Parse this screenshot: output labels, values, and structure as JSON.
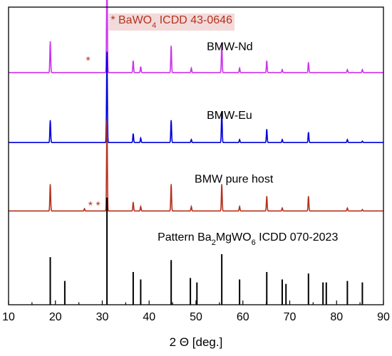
{
  "chart_data": {
    "type": "line",
    "xlabel": "2 Θ [deg.]",
    "xlim": [
      10,
      90
    ],
    "x_ticks": [
      "10",
      "20",
      "30",
      "40",
      "50",
      "60",
      "70",
      "80",
      "90"
    ],
    "y_ticks_shown": false,
    "grid": false,
    "legend": "none",
    "series": [
      {
        "name": "BMW-Nd",
        "color": "#cc33ee",
        "baseline": 0.78,
        "peaks": [
          [
            18.9,
            0.105
          ],
          [
            31.0,
            0.34
          ],
          [
            36.6,
            0.04
          ],
          [
            38.2,
            0.02
          ],
          [
            44.7,
            0.09
          ],
          [
            49.0,
            0.015
          ],
          [
            55.5,
            0.1
          ],
          [
            59.3,
            0.015
          ],
          [
            65.1,
            0.04
          ],
          [
            68.4,
            0.01
          ],
          [
            74.0,
            0.035
          ],
          [
            82.3,
            0.01
          ],
          [
            85.5,
            0.01
          ]
        ]
      },
      {
        "name": "BMW-Eu",
        "color": "#0000dd",
        "baseline": 0.545,
        "peaks": [
          [
            18.9,
            0.075
          ],
          [
            31.0,
            0.305
          ],
          [
            36.6,
            0.03
          ],
          [
            38.2,
            0.015
          ],
          [
            44.7,
            0.075
          ],
          [
            49.0,
            0.01
          ],
          [
            55.5,
            0.105
          ],
          [
            59.3,
            0.01
          ],
          [
            65.1,
            0.045
          ],
          [
            68.4,
            0.01
          ],
          [
            74.0,
            0.035
          ],
          [
            82.3,
            0.01
          ],
          [
            85.5,
            0.005
          ]
        ]
      },
      {
        "name": "BMW pure host",
        "color": "#b5321e",
        "baseline": 0.315,
        "peaks": [
          [
            18.9,
            0.09
          ],
          [
            26.2,
            0.008
          ],
          [
            31.0,
            0.305
          ],
          [
            36.6,
            0.03
          ],
          [
            38.2,
            0.015
          ],
          [
            44.7,
            0.09
          ],
          [
            49.0,
            0.015
          ],
          [
            55.5,
            0.09
          ],
          [
            59.3,
            0.015
          ],
          [
            65.1,
            0.05
          ],
          [
            68.4,
            0.01
          ],
          [
            74.0,
            0.05
          ],
          [
            82.3,
            0.01
          ],
          [
            85.5,
            0.005
          ]
        ]
      }
    ],
    "reference_pattern": {
      "color": "#000000",
      "lines": [
        [
          18.9,
          0.16
        ],
        [
          22.0,
          0.08
        ],
        [
          31.0,
          0.36
        ],
        [
          36.6,
          0.11
        ],
        [
          38.2,
          0.085
        ],
        [
          44.7,
          0.15
        ],
        [
          48.8,
          0.09
        ],
        [
          50.2,
          0.075
        ],
        [
          55.5,
          0.17
        ],
        [
          59.3,
          0.085
        ],
        [
          65.1,
          0.11
        ],
        [
          68.4,
          0.085
        ],
        [
          69.2,
          0.07
        ],
        [
          74.0,
          0.105
        ],
        [
          77.1,
          0.075
        ],
        [
          77.8,
          0.075
        ],
        [
          82.3,
          0.08
        ],
        [
          85.5,
          0.075
        ]
      ]
    },
    "annotations": [
      {
        "text": "* BaWO",
        "sub": "4",
        "after": " ICDD 43-0646",
        "color": "#b5321e",
        "bg": "#f3dada",
        "x": 31.8,
        "y": 0.945
      },
      {
        "text": "BMW-Nd",
        "color": "#000000",
        "x": 52.3,
        "y": 0.855
      },
      {
        "text": "*",
        "color": "#b5321e",
        "x": 26.5,
        "y": 0.808
      },
      {
        "text": "BMW-Eu",
        "color": "#000000",
        "x": 52.3,
        "y": 0.625
      },
      {
        "text": "BMW pure host",
        "color": "#000000",
        "x": 49.7,
        "y": 0.41
      },
      {
        "text": "* *",
        "color": "#b5321e",
        "x": 27.0,
        "y": 0.32
      },
      {
        "text": "Pattern Ba",
        "sub": "2",
        "after": "MgWO",
        "sub2": "6",
        "after2": " ICDD 070-2023",
        "color": "#000000",
        "x": 41.8,
        "y": 0.215
      }
    ]
  }
}
